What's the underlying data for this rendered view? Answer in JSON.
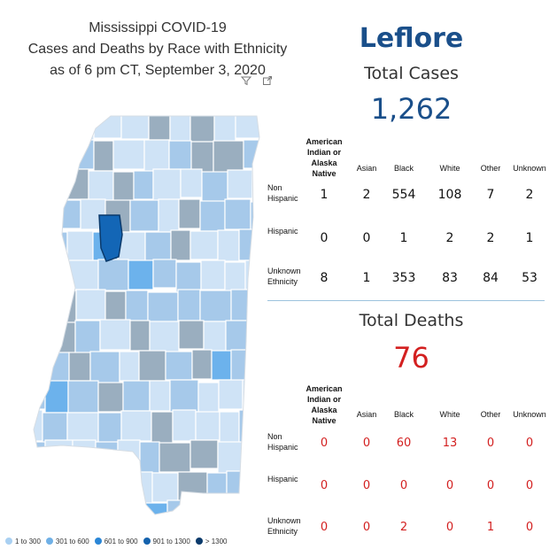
{
  "title": {
    "line1": "Mississippi COVID-19",
    "line2": "Cases and Deaths by Race with Ethnicity",
    "line3": "as of 6 pm CT, September 3, 2020"
  },
  "map": {
    "highlighted_county": "Leflore",
    "colors": {
      "bin1": "#cfe3f6",
      "bin2": "#a6c9ea",
      "bin3": "#6cb2ec",
      "bin4": "#1366b6",
      "bin5": "#0b3a6b",
      "gray": "#9aaebf",
      "border": "#ffffff"
    }
  },
  "legend": {
    "items": [
      {
        "label": "1 to 300",
        "color": "#a9d0f2"
      },
      {
        "label": "301 to 600",
        "color": "#6fb0e6"
      },
      {
        "label": "601 to 900",
        "color": "#2a86d6"
      },
      {
        "label": "901 to 1300",
        "color": "#1462ad"
      },
      {
        "label": "> 1300",
        "color": "#0b3a6b"
      }
    ]
  },
  "county": "Leflore",
  "cases": {
    "title": "Total Cases",
    "total": "1,262",
    "columns": [
      "American Indian or Alaska Native",
      "Asian",
      "Black",
      "White",
      "Other",
      "Unknown"
    ],
    "rows": [
      {
        "label": "Non Hispanic",
        "values": [
          "1",
          "2",
          "554",
          "108",
          "7",
          "2"
        ]
      },
      {
        "label": "Hispanic",
        "values": [
          "0",
          "0",
          "1",
          "2",
          "2",
          "1"
        ]
      },
      {
        "label": "Unknown Ethnicity",
        "values": [
          "8",
          "1",
          "353",
          "83",
          "84",
          "53"
        ]
      }
    ]
  },
  "deaths": {
    "title": "Total Deaths",
    "total": "76",
    "columns": [
      "American Indian or Alaska Native",
      "Asian",
      "Black",
      "White",
      "Other",
      "Unknown"
    ],
    "rows": [
      {
        "label": "Non Hispanic",
        "values": [
          "0",
          "0",
          "60",
          "13",
          "0",
          "0"
        ]
      },
      {
        "label": "Hispanic",
        "values": [
          "0",
          "0",
          "0",
          "0",
          "0",
          "0"
        ]
      },
      {
        "label": "Unknown Ethnicity",
        "values": [
          "0",
          "0",
          "2",
          "0",
          "1",
          "0"
        ]
      }
    ]
  },
  "ui": {
    "filter_icon": "filter-icon",
    "focus_icon": "focus-mode-icon",
    "highlight_color_cases": "#1a4f8a",
    "highlight_color_deaths": "#d32020"
  }
}
